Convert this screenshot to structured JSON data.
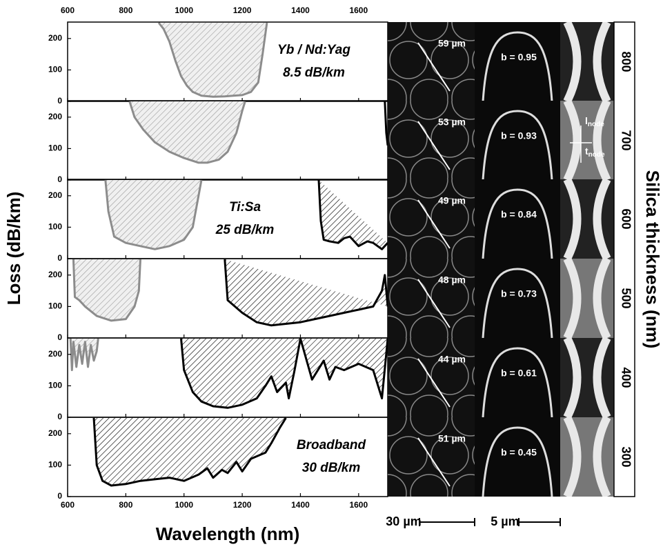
{
  "chart_data": {
    "type": "area",
    "x_label": "Wavelength (nm)",
    "y_label": "Loss (dB/km)",
    "right_label": "Silica thickness (nm)",
    "xlim": [
      600,
      1700
    ],
    "xticks": [
      600,
      800,
      1000,
      1200,
      1400,
      1600
    ],
    "panels": [
      {
        "ylim": [
          0,
          250
        ],
        "yticks": [
          0,
          100,
          200
        ],
        "annotations": [
          "Yb / Nd:Yag",
          "8.5 dB/km"
        ],
        "series": [
          {
            "color": "#8c8c8c",
            "x": [
              913,
              930,
              950,
              970,
              990,
              1010,
              1030,
              1060,
              1100,
              1140,
              1170,
              1200,
              1230,
              1255,
              1270,
              1285
            ],
            "values": [
              250,
              230,
              190,
              130,
              80,
              50,
              30,
              18,
              15,
              16,
              18,
              20,
              30,
              60,
              150,
              250
            ]
          }
        ]
      },
      {
        "ylim": [
          0,
          250
        ],
        "yticks": [
          0,
          100,
          200
        ],
        "annotations": [],
        "series": [
          {
            "color": "#8c8c8c",
            "x": [
              813,
              830,
              860,
              900,
              950,
              1000,
              1050,
              1080,
              1120,
              1150,
              1180,
              1200,
              1210
            ],
            "values": [
              250,
              200,
              160,
              120,
              90,
              70,
              55,
              55,
              65,
              90,
              150,
              220,
              250
            ]
          },
          {
            "color": "#000000",
            "x": [
              1690,
              1695,
              1700
            ],
            "values": [
              250,
              150,
              110
            ]
          }
        ]
      },
      {
        "ylim": [
          0,
          250
        ],
        "yticks": [
          0,
          100,
          200
        ],
        "annotations": [
          "Ti:Sa",
          "25 dB/km"
        ],
        "series": [
          {
            "color": "#8c8c8c",
            "x": [
              730,
              740,
              760,
              800,
              850,
              900,
              950,
              1000,
              1030,
              1050,
              1060
            ],
            "values": [
              250,
              150,
              70,
              50,
              40,
              30,
              40,
              60,
              100,
              200,
              250
            ]
          },
          {
            "color": "#000000",
            "x": [
              1463,
              1470,
              1480,
              1500,
              1530,
              1550,
              1570,
              1600,
              1630,
              1650,
              1680,
              1700
            ],
            "values": [
              250,
              120,
              60,
              55,
              50,
              65,
              70,
              40,
              55,
              50,
              30,
              50
            ]
          }
        ]
      },
      {
        "ylim": [
          0,
          250
        ],
        "yticks": [
          0,
          100,
          200
        ],
        "annotations": [],
        "series": [
          {
            "color": "#8c8c8c",
            "x": [
              620,
              625,
              640,
              660,
              700,
              750,
              800,
              830,
              845,
              850
            ],
            "values": [
              250,
              130,
              120,
              100,
              70,
              55,
              60,
              100,
              150,
              250
            ]
          },
          {
            "color": "#000000",
            "x": [
              1140,
              1150,
              1200,
              1250,
              1300,
              1350,
              1400,
              1450,
              1500,
              1550,
              1600,
              1650,
              1680,
              1690,
              1700
            ],
            "values": [
              250,
              120,
              80,
              50,
              40,
              45,
              50,
              60,
              70,
              80,
              90,
              100,
              150,
              200,
              100
            ]
          }
        ]
      },
      {
        "ylim": [
          0,
          250
        ],
        "yticks": [
          0,
          100,
          200
        ],
        "annotations": [],
        "series": [
          {
            "color": "#8c8c8c",
            "x": [
              610,
              615,
              620,
              630,
              640,
              650,
              660,
              670,
              680,
              690,
              700,
              705
            ],
            "values": [
              250,
              150,
              240,
              160,
              230,
              170,
              240,
              160,
              230,
              180,
              210,
              250
            ]
          },
          {
            "color": "#000000",
            "x": [
              990,
              1000,
              1030,
              1060,
              1100,
              1150,
              1200,
              1250,
              1280,
              1300,
              1320,
              1350,
              1360,
              1380,
              1400,
              1440,
              1480,
              1500,
              1520,
              1550,
              1600,
              1650,
              1680,
              1700
            ],
            "values": [
              250,
              150,
              80,
              50,
              35,
              30,
              40,
              60,
              100,
              130,
              80,
              110,
              60,
              150,
              250,
              120,
              180,
              120,
              160,
              150,
              170,
              150,
              60,
              250
            ]
          }
        ]
      },
      {
        "ylim": [
          0,
          250
        ],
        "yticks": [
          0,
          100,
          200
        ],
        "annotations": [
          "Broadband",
          "30 dB/km"
        ],
        "series": [
          {
            "color": "#000000",
            "x": [
              690,
              700,
              720,
              750,
              800,
              850,
              900,
              950,
              1000,
              1050,
              1080,
              1100,
              1130,
              1150,
              1180,
              1200,
              1230,
              1280,
              1300,
              1330,
              1350
            ],
            "values": [
              250,
              100,
              50,
              35,
              40,
              50,
              55,
              60,
              50,
              70,
              90,
              60,
              85,
              75,
              110,
              80,
              120,
              140,
              170,
              220,
              250
            ]
          }
        ]
      }
    ]
  },
  "images": [
    {
      "pitch": "59 µm",
      "b": "b = 0.95",
      "thickness": 800
    },
    {
      "pitch": "53 µm",
      "b": "b = 0.93",
      "thickness": 700
    },
    {
      "pitch": "49 µm",
      "b": "b = 0.84",
      "thickness": 600
    },
    {
      "pitch": "48 µm",
      "b": "b = 0.73",
      "thickness": 500
    },
    {
      "pitch": "44 µm",
      "b": "b = 0.61",
      "thickness": 400
    },
    {
      "pitch": "51 µm",
      "b": "b = 0.45",
      "thickness": 300
    }
  ],
  "node_labels": [
    {
      "main": "l",
      "sub": "node"
    },
    {
      "main": "t",
      "sub": "node"
    }
  ],
  "scale_bars": [
    "30 µm",
    "5 µm"
  ]
}
